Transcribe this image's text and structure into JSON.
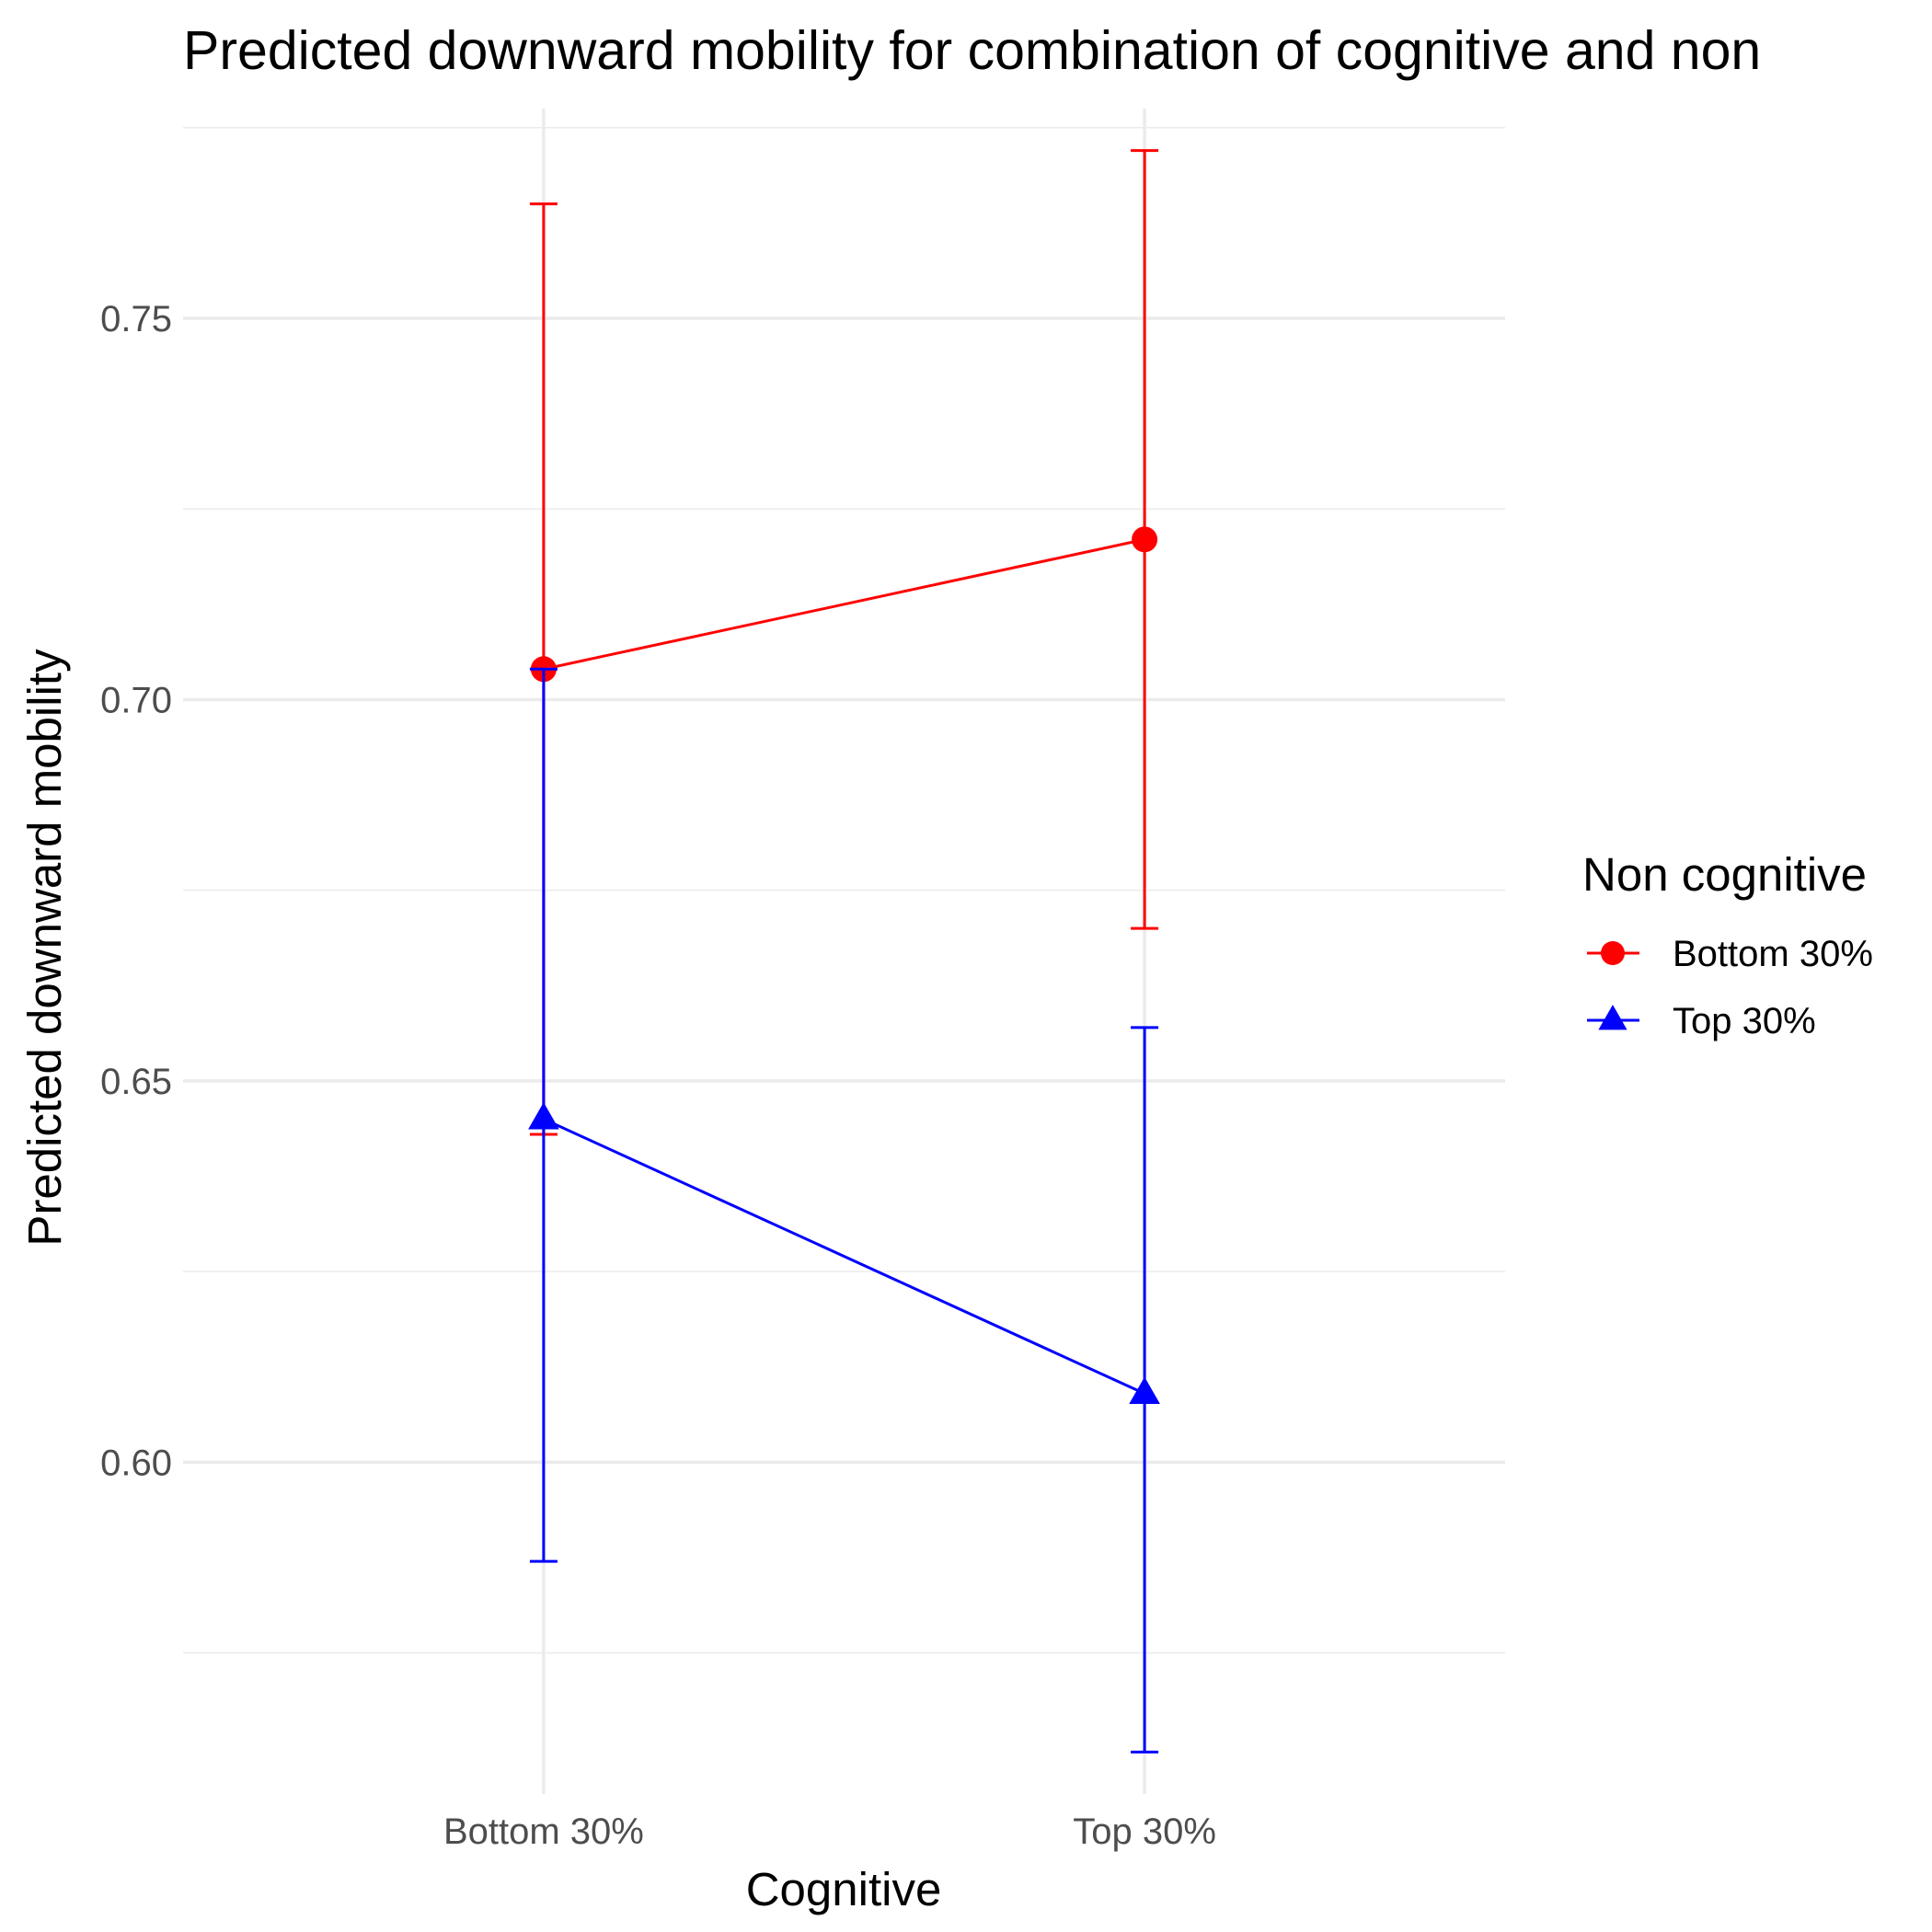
{
  "chart_data": {
    "type": "line",
    "title": "Predicted downward mobility for combination of cognitive and non",
    "xlabel": "Cognitive",
    "ylabel": "Predicted downward mobility",
    "categories": [
      "Bottom 30%",
      "Top 30%"
    ],
    "ylim": [
      0.5565,
      0.7775
    ],
    "yticks": [
      0.6,
      0.65,
      0.7,
      0.75
    ],
    "ytick_labels": [
      "0.60",
      "0.65",
      "0.70",
      "0.75"
    ],
    "grid": true,
    "legend": {
      "title": "Non cognitive",
      "position": "right"
    },
    "series": [
      {
        "name": "Bottom 30%",
        "color": "#ff0000",
        "marker": "circle",
        "values": [
          0.704,
          0.721
        ],
        "lower": [
          0.643,
          0.67
        ],
        "upper": [
          0.765,
          0.772
        ]
      },
      {
        "name": "Top 30%",
        "color": "#0000ff",
        "marker": "triangle",
        "values": [
          0.645,
          0.609
        ],
        "lower": [
          0.587,
          0.562
        ],
        "upper": [
          0.704,
          0.657
        ]
      }
    ]
  }
}
